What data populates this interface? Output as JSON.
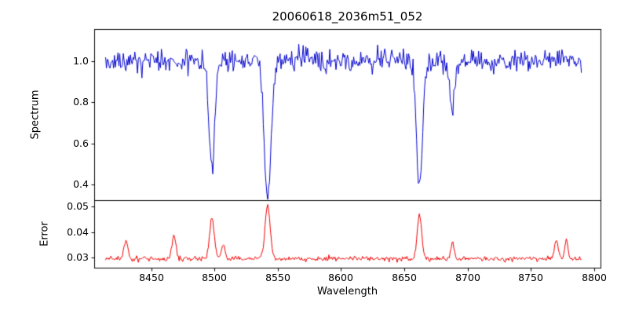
{
  "title": "20060618_2036m51_052",
  "x_axis": {
    "label": "Wavelength",
    "ticks": [
      8450,
      8500,
      8550,
      8600,
      8650,
      8700,
      8750,
      8800
    ],
    "range": [
      8405,
      8805
    ]
  },
  "panels": [
    {
      "ylabel": "Spectrum",
      "ylim": [
        0.325,
        1.155
      ],
      "yticks": [
        0.4,
        0.6,
        0.8,
        1.0
      ],
      "color": "#0000cd"
    },
    {
      "ylabel": "Error",
      "ylim": [
        0.026,
        0.0525
      ],
      "yticks": [
        0.03,
        0.04,
        0.05
      ],
      "color": "#ee0000"
    }
  ],
  "chart_data": {
    "type": "line",
    "title": "20060618_2036m51_052",
    "xlabel": "Wavelength",
    "x_range": [
      8414,
      8790
    ],
    "legend": "none",
    "grid": false,
    "series": [
      {
        "name": "Spectrum",
        "color": "#0000cd",
        "continuum": 1.0,
        "noise_sigma": 0.027,
        "ylim": [
          0.325,
          1.155
        ],
        "absorption_lines": [
          {
            "center": 8498,
            "min_value": 0.48,
            "sigma": 2.2
          },
          {
            "center": 8542,
            "min_value": 0.36,
            "sigma": 2.8
          },
          {
            "center": 8662,
            "min_value": 0.39,
            "sigma": 2.4
          },
          {
            "center": 8688,
            "min_value": 0.74,
            "sigma": 1.8
          }
        ]
      },
      {
        "name": "Error",
        "color": "#ee0000",
        "baseline": 0.0295,
        "noise_sigma": 0.0005,
        "ylim": [
          0.026,
          0.0525
        ],
        "peaks": [
          {
            "center": 8430,
            "peak_value": 0.0365,
            "sigma": 1.5
          },
          {
            "center": 8468,
            "peak_value": 0.0385,
            "sigma": 1.5
          },
          {
            "center": 8498,
            "peak_value": 0.0455,
            "sigma": 1.8
          },
          {
            "center": 8507,
            "peak_value": 0.035,
            "sigma": 1.4
          },
          {
            "center": 8542,
            "peak_value": 0.0505,
            "sigma": 2.0
          },
          {
            "center": 8662,
            "peak_value": 0.047,
            "sigma": 1.8
          },
          {
            "center": 8688,
            "peak_value": 0.0355,
            "sigma": 1.4
          },
          {
            "center": 8770,
            "peak_value": 0.0365,
            "sigma": 1.5
          },
          {
            "center": 8778,
            "peak_value": 0.037,
            "sigma": 1.2
          }
        ]
      }
    ]
  }
}
